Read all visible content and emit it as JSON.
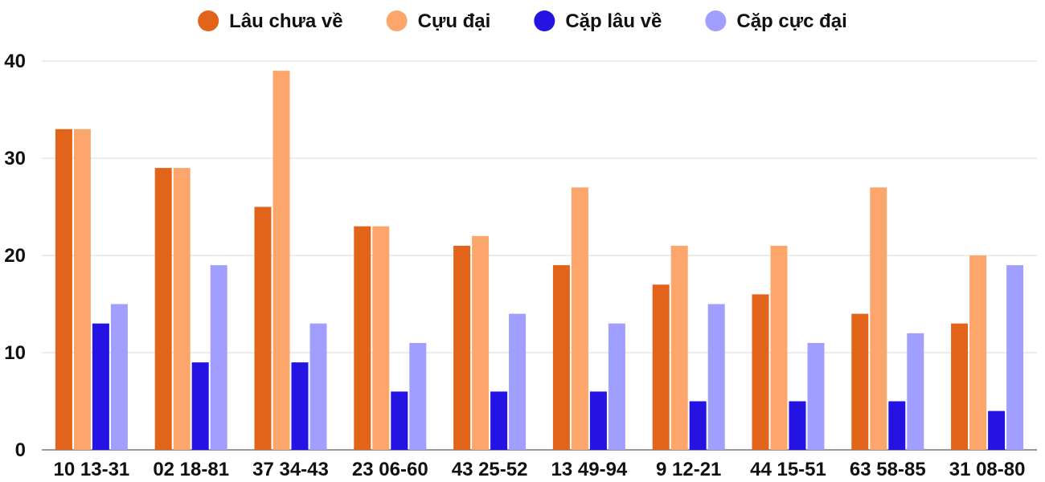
{
  "chart_data": {
    "type": "bar",
    "title": "",
    "xlabel": "",
    "ylabel": "",
    "ylim": [
      0,
      40
    ],
    "yticks": [
      0,
      10,
      20,
      30,
      40
    ],
    "grid": true,
    "legend_position": "top-center",
    "categories": [
      "10 13-31",
      "02 18-81",
      "37 34-43",
      "23 06-60",
      "43 25-52",
      "13 49-94",
      "9 12-21",
      "44 15-51",
      "63 58-85",
      "31 08-80"
    ],
    "series": [
      {
        "name": "Lâu chưa về",
        "color": "#e2641b",
        "values": [
          33,
          29,
          25,
          23,
          21,
          19,
          17,
          16,
          14,
          13
        ]
      },
      {
        "name": "Cựu đại",
        "color": "#fca66b",
        "values": [
          33,
          29,
          39,
          23,
          22,
          27,
          21,
          21,
          27,
          20
        ]
      },
      {
        "name": "Cặp lâu về",
        "color": "#2413e2",
        "values": [
          13,
          9,
          9,
          6,
          6,
          6,
          5,
          5,
          5,
          4
        ]
      },
      {
        "name": "Cặp cực đại",
        "color": "#a09efe",
        "values": [
          15,
          19,
          13,
          11,
          14,
          13,
          15,
          11,
          12,
          19
        ]
      }
    ]
  }
}
